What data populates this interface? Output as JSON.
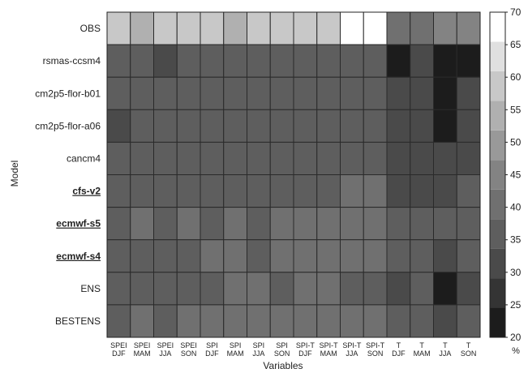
{
  "chart_data": {
    "type": "heatmap",
    "xlabel": "Variables",
    "ylabel": "Model",
    "x_categories": [
      [
        "SPEI",
        "DJF"
      ],
      [
        "SPEI",
        "MAM"
      ],
      [
        "SPEI",
        "JJA"
      ],
      [
        "SPEI",
        "SON"
      ],
      [
        "SPI",
        "DJF"
      ],
      [
        "SPI",
        "MAM"
      ],
      [
        "SPI",
        "JJA"
      ],
      [
        "SPI",
        "SON"
      ],
      [
        "SPI-T",
        "DJF"
      ],
      [
        "SPI-T",
        "MAM"
      ],
      [
        "SPI-T",
        "JJA"
      ],
      [
        "SPI-T",
        "SON"
      ],
      [
        "T",
        "DJF"
      ],
      [
        "T",
        "MAM"
      ],
      [
        "T",
        "JJA"
      ],
      [
        "T",
        "SON"
      ]
    ],
    "y_categories": [
      {
        "label": "OBS",
        "bold": false
      },
      {
        "label": "rsmas-ccsm4",
        "bold": false
      },
      {
        "label": "cm2p5-flor-b01",
        "bold": false
      },
      {
        "label": "cm2p5-flor-a06",
        "bold": false
      },
      {
        "label": "cancm4",
        "bold": false
      },
      {
        "label": "cfs-v2",
        "bold": true
      },
      {
        "label": "ecmwf-s5",
        "bold": true
      },
      {
        "label": "ecmwf-s4",
        "bold": true
      },
      {
        "label": "ENS",
        "bold": false
      },
      {
        "label": "BESTENS",
        "bold": false
      }
    ],
    "values": [
      [
        63,
        58,
        62,
        62,
        63,
        58,
        62,
        62,
        63,
        63,
        70,
        70,
        43,
        43,
        48,
        48
      ],
      [
        38,
        36,
        31,
        36,
        38,
        36,
        38,
        37,
        37,
        38,
        36,
        36,
        22,
        33,
        21,
        21
      ],
      [
        38,
        36,
        36,
        38,
        38,
        38,
        38,
        39,
        37,
        38,
        39,
        37,
        33,
        33,
        21,
        33
      ],
      [
        34,
        38,
        36,
        38,
        36,
        38,
        37,
        36,
        37,
        38,
        38,
        38,
        33,
        33,
        21,
        31
      ],
      [
        38,
        38,
        38,
        38,
        36,
        38,
        38,
        37,
        36,
        38,
        38,
        38,
        33,
        33,
        32,
        31
      ],
      [
        38,
        38,
        38,
        38,
        38,
        38,
        38,
        38,
        38,
        38,
        43,
        43,
        30,
        30,
        32,
        38
      ],
      [
        38,
        43,
        38,
        43,
        38,
        43,
        38,
        43,
        43,
        43,
        43,
        43,
        36,
        36,
        36,
        36
      ],
      [
        38,
        38,
        38,
        38,
        43,
        43,
        38,
        43,
        43,
        43,
        43,
        43,
        36,
        36,
        31,
        36
      ],
      [
        38,
        38,
        38,
        38,
        38,
        43,
        43,
        38,
        43,
        43,
        38,
        38,
        30,
        36,
        21,
        30
      ],
      [
        38,
        43,
        38,
        43,
        43,
        43,
        43,
        43,
        43,
        43,
        43,
        43,
        36,
        36,
        31,
        36
      ]
    ],
    "color_scale": {
      "min": 20,
      "max": 70,
      "step": 5,
      "ticks": [
        20,
        25,
        30,
        35,
        40,
        45,
        50,
        55,
        60,
        65,
        70
      ],
      "unit": "%",
      "colors": [
        "#1c1c1c",
        "#343434",
        "#4a4a4a",
        "#5e5e5e",
        "#707070",
        "#838383",
        "#999999",
        "#b0b0b0",
        "#c8c8c8",
        "#e0e0e0",
        "#ffffff"
      ]
    },
    "grid": true
  }
}
